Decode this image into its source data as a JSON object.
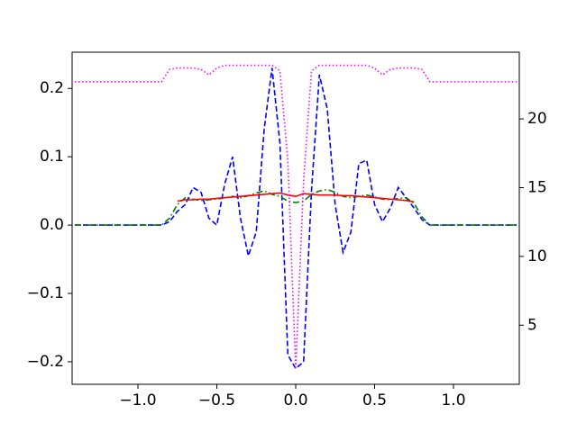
{
  "chart_data": {
    "type": "line",
    "x": [
      -1.4,
      -1.35,
      -1.3,
      -1.25,
      -1.2,
      -1.15,
      -1.1,
      -1.05,
      -1.0,
      -0.95,
      -0.9,
      -0.85,
      -0.8,
      -0.75,
      -0.7,
      -0.65,
      -0.6,
      -0.55,
      -0.5,
      -0.45,
      -0.4,
      -0.35,
      -0.3,
      -0.25,
      -0.2,
      -0.15,
      -0.1,
      -0.05,
      0,
      0.05,
      0.1,
      0.15,
      0.2,
      0.25,
      0.3,
      0.35,
      0.4,
      0.45,
      0.5,
      0.55,
      0.6,
      0.65,
      0.7,
      0.75,
      0.8,
      0.85,
      0.9,
      0.95,
      1.0,
      1.05,
      1.1,
      1.15,
      1.2,
      1.25,
      1.3,
      1.35,
      1.4
    ],
    "series": [
      {
        "color": "#0000ff",
        "style": "dashed",
        "values": [
          0,
          0,
          0,
          0,
          0,
          0,
          0,
          0,
          0,
          0,
          0,
          0,
          0.005,
          0.02,
          0.03,
          0.055,
          0.048,
          0.01,
          0.0,
          0.06,
          0.1,
          0.01,
          -0.045,
          -0.01,
          0.14,
          0.23,
          0.12,
          -0.19,
          -0.21,
          -0.2,
          0.05,
          0.22,
          0.17,
          0.03,
          -0.04,
          -0.01,
          0.09,
          0.095,
          0.03,
          0.005,
          0.025,
          0.055,
          0.04,
          0.025,
          0.008,
          0,
          0,
          0,
          0,
          0,
          0,
          0,
          0,
          0,
          0,
          0,
          0
        ]
      },
      {
        "color": "#008000",
        "style": "dashdot",
        "values": [
          0,
          0,
          0,
          0,
          0,
          0,
          0,
          0,
          0,
          0,
          0,
          0,
          0.01,
          0.03,
          0.04,
          0.038,
          0.036,
          0.037,
          0.038,
          0.04,
          0.042,
          0.04,
          0.043,
          0.047,
          0.05,
          0.045,
          0.042,
          0.035,
          0.033,
          0.035,
          0.045,
          0.05,
          0.052,
          0.048,
          0.042,
          0.04,
          0.042,
          0.044,
          0.041,
          0.038,
          0.037,
          0.039,
          0.04,
          0.032,
          0.012,
          0,
          0,
          0,
          0,
          0,
          0,
          0,
          0,
          0,
          0,
          0,
          0
        ]
      },
      {
        "color": "#ff0000",
        "style": "solid",
        "values": [
          null,
          null,
          null,
          null,
          null,
          null,
          null,
          null,
          null,
          null,
          null,
          null,
          null,
          0.035,
          0.037,
          0.037,
          0.038,
          0.038,
          0.039,
          0.04,
          0.041,
          0.042,
          0.043,
          0.044,
          0.045,
          0.046,
          0.047,
          0.044,
          0.042,
          0.046,
          0.045,
          0.044,
          0.044,
          0.044,
          0.043,
          0.043,
          0.042,
          0.041,
          0.04,
          0.039,
          0.038,
          0.037,
          0.036,
          0.034,
          null,
          null,
          null,
          null,
          null,
          null,
          null,
          null,
          null,
          null,
          null,
          null,
          null
        ]
      },
      {
        "color": "#ff00ff",
        "style": "dotted",
        "axis": "y2",
        "values": [
          22.7,
          22.7,
          22.7,
          22.7,
          22.7,
          22.7,
          22.7,
          22.7,
          22.7,
          22.7,
          22.7,
          22.7,
          23.6,
          23.7,
          23.7,
          23.7,
          23.6,
          23.2,
          23.7,
          23.9,
          23.9,
          23.9,
          23.9,
          23.9,
          23.9,
          23.9,
          23.5,
          17,
          1.8,
          15.5,
          23.5,
          23.9,
          23.9,
          23.9,
          23.9,
          23.9,
          23.9,
          23.9,
          23.7,
          23.2,
          23.6,
          23.7,
          23.7,
          23.7,
          23.6,
          22.7,
          22.7,
          22.7,
          22.7,
          22.7,
          22.7,
          22.7,
          22.7,
          22.7,
          22.7,
          22.7,
          22.7
        ]
      }
    ],
    "xlim": [
      -1.417,
      1.417
    ],
    "xticks": [
      {
        "value": -1.0,
        "label": "−1.0"
      },
      {
        "value": -0.5,
        "label": "−0.5"
      },
      {
        "value": 0.0,
        "label": "0.0"
      },
      {
        "value": 0.5,
        "label": "0.5"
      },
      {
        "value": 1.0,
        "label": "1.0"
      }
    ],
    "ylim": [
      -0.233,
      0.253
    ],
    "yticks": [
      {
        "value": -0.2,
        "label": "−0.2"
      },
      {
        "value": -0.1,
        "label": "−0.1"
      },
      {
        "value": 0.0,
        "label": "0.0"
      },
      0.1,
      0.2
    ],
    "y2lim": [
      0.7,
      24.85
    ],
    "y2ticks": [
      5,
      10,
      15,
      20
    ],
    "grid": false
  }
}
